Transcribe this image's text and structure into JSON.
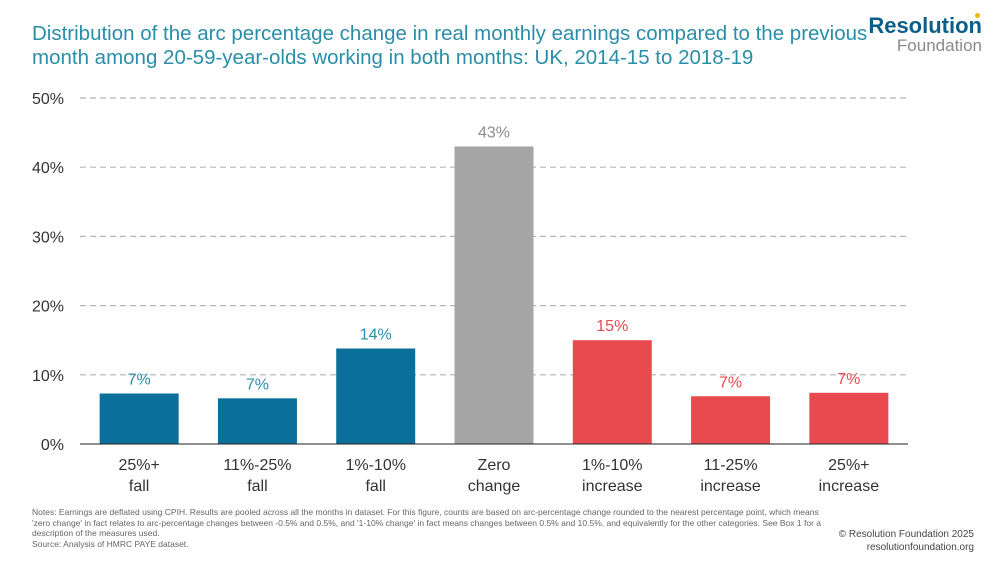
{
  "header": {
    "title": "Distribution of the arc percentage change in real monthly earnings compared to the previous month among 20-59-year-olds working in both months: UK, 2014-15 to 2018-19"
  },
  "logo": {
    "top": "Resolution",
    "bottom": "Foundation"
  },
  "footer": {
    "notes": "Notes: Earnings are deflated using CPIH. Results are pooled across all the months in dataset. For this figure, counts are based on arc-percentage change rounded to the nearest percentage point, which means 'zero change' in fact relates to arc-percentage changes between -0.5% and 0.5%, and '1-10% change' in fact means changes between 0.5% and 10.5%, and equivalently for the other categories. See Box 1 for a description of the measures used.",
    "source": "Source: Analysis of HMRC PAYE dataset.",
    "copyright": "© Resolution Foundation 2025",
    "website": "resolutionfoundation.org"
  },
  "chart_data": {
    "type": "bar",
    "title": "",
    "xlabel": "",
    "ylabel": "",
    "ylim": [
      0,
      50
    ],
    "yticks": [
      0,
      10,
      20,
      30,
      40,
      50
    ],
    "ytick_labels": [
      "0%",
      "10%",
      "20%",
      "30%",
      "40%",
      "50%"
    ],
    "grid": true,
    "categories": [
      [
        "25%+",
        "fall"
      ],
      [
        "11%-25%",
        "fall"
      ],
      [
        "1%-10%",
        "fall"
      ],
      [
        "Zero",
        "change"
      ],
      [
        "1%-10%",
        "increase"
      ],
      [
        "11-25%",
        "increase"
      ],
      [
        "25%+",
        "increase"
      ]
    ],
    "values": [
      7.3,
      6.6,
      13.8,
      43,
      15,
      6.9,
      7.4
    ],
    "data_labels": [
      "7%",
      "7%",
      "14%",
      "43%",
      "15%",
      "7%",
      "7%"
    ],
    "colors": [
      "#0a709b",
      "#0a709b",
      "#0a709b",
      "#a6a6a6",
      "#e84a4f",
      "#e84a4f",
      "#e84a4f"
    ],
    "label_colors": [
      "#2a8ea8",
      "#2a8ea8",
      "#2a8ea8",
      "#8c8c8c",
      "#e84a4f",
      "#e84a4f",
      "#e84a4f"
    ]
  }
}
